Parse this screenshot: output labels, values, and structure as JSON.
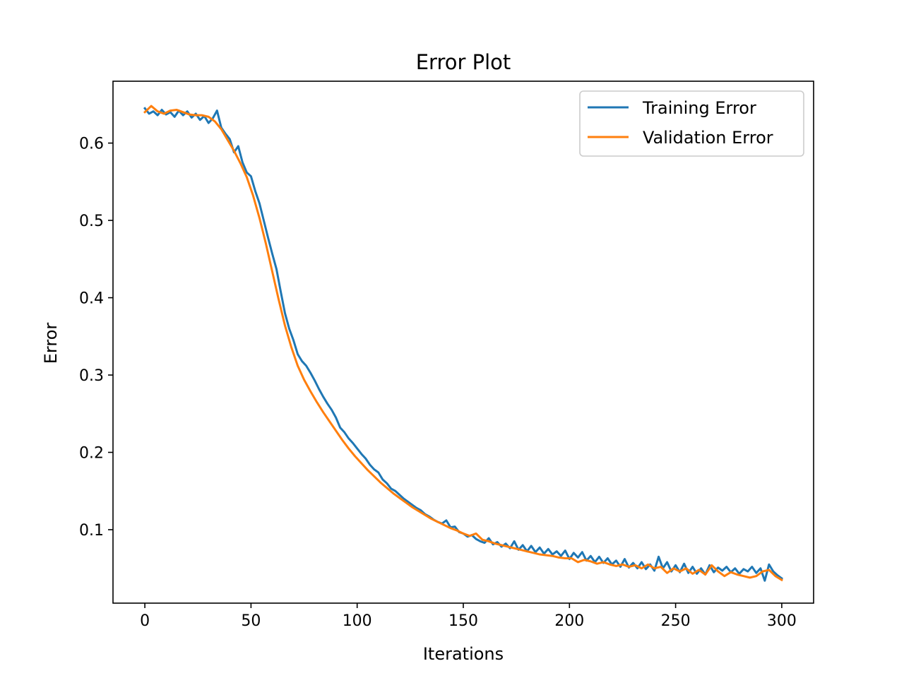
{
  "chart_data": {
    "type": "line",
    "title": "Error Plot",
    "xlabel": "Iterations",
    "ylabel": "Error",
    "xlim": [
      -15,
      315
    ],
    "ylim": [
      0.005,
      0.68
    ],
    "xticks": [
      0,
      50,
      100,
      150,
      200,
      250,
      300
    ],
    "yticks": [
      0.1,
      0.2,
      0.3,
      0.4,
      0.5,
      0.6
    ],
    "grid": false,
    "legend_position": "top-right",
    "series": [
      {
        "name": "Training Error",
        "color": "#1f77b4",
        "points": [
          [
            0,
            0.645
          ],
          [
            2,
            0.638
          ],
          [
            4,
            0.641
          ],
          [
            6,
            0.636
          ],
          [
            8,
            0.643
          ],
          [
            10,
            0.637
          ],
          [
            12,
            0.64
          ],
          [
            14,
            0.634
          ],
          [
            16,
            0.642
          ],
          [
            18,
            0.636
          ],
          [
            20,
            0.641
          ],
          [
            22,
            0.633
          ],
          [
            24,
            0.638
          ],
          [
            26,
            0.63
          ],
          [
            28,
            0.635
          ],
          [
            30,
            0.626
          ],
          [
            32,
            0.632
          ],
          [
            34,
            0.642
          ],
          [
            36,
            0.62
          ],
          [
            38,
            0.612
          ],
          [
            40,
            0.605
          ],
          [
            42,
            0.588
          ],
          [
            44,
            0.596
          ],
          [
            46,
            0.575
          ],
          [
            48,
            0.562
          ],
          [
            50,
            0.557
          ],
          [
            52,
            0.538
          ],
          [
            54,
            0.522
          ],
          [
            56,
            0.5
          ],
          [
            58,
            0.478
          ],
          [
            60,
            0.457
          ],
          [
            62,
            0.437
          ],
          [
            64,
            0.408
          ],
          [
            66,
            0.38
          ],
          [
            68,
            0.36
          ],
          [
            70,
            0.345
          ],
          [
            72,
            0.327
          ],
          [
            74,
            0.318
          ],
          [
            76,
            0.312
          ],
          [
            78,
            0.303
          ],
          [
            80,
            0.293
          ],
          [
            82,
            0.282
          ],
          [
            84,
            0.272
          ],
          [
            86,
            0.263
          ],
          [
            88,
            0.255
          ],
          [
            90,
            0.245
          ],
          [
            92,
            0.232
          ],
          [
            94,
            0.226
          ],
          [
            96,
            0.218
          ],
          [
            98,
            0.212
          ],
          [
            100,
            0.205
          ],
          [
            102,
            0.198
          ],
          [
            104,
            0.192
          ],
          [
            106,
            0.184
          ],
          [
            108,
            0.178
          ],
          [
            110,
            0.174
          ],
          [
            112,
            0.165
          ],
          [
            114,
            0.16
          ],
          [
            116,
            0.153
          ],
          [
            118,
            0.15
          ],
          [
            120,
            0.145
          ],
          [
            122,
            0.14
          ],
          [
            124,
            0.136
          ],
          [
            126,
            0.132
          ],
          [
            128,
            0.128
          ],
          [
            130,
            0.125
          ],
          [
            132,
            0.12
          ],
          [
            134,
            0.117
          ],
          [
            136,
            0.113
          ],
          [
            138,
            0.11
          ],
          [
            140,
            0.108
          ],
          [
            142,
            0.112
          ],
          [
            144,
            0.103
          ],
          [
            146,
            0.104
          ],
          [
            148,
            0.097
          ],
          [
            150,
            0.095
          ],
          [
            152,
            0.091
          ],
          [
            154,
            0.093
          ],
          [
            156,
            0.088
          ],
          [
            158,
            0.085
          ],
          [
            160,
            0.083
          ],
          [
            162,
            0.089
          ],
          [
            164,
            0.081
          ],
          [
            166,
            0.084
          ],
          [
            168,
            0.078
          ],
          [
            170,
            0.082
          ],
          [
            172,
            0.076
          ],
          [
            174,
            0.085
          ],
          [
            176,
            0.074
          ],
          [
            178,
            0.08
          ],
          [
            180,
            0.072
          ],
          [
            182,
            0.079
          ],
          [
            184,
            0.071
          ],
          [
            186,
            0.077
          ],
          [
            188,
            0.069
          ],
          [
            190,
            0.075
          ],
          [
            192,
            0.068
          ],
          [
            194,
            0.072
          ],
          [
            196,
            0.066
          ],
          [
            198,
            0.073
          ],
          [
            200,
            0.062
          ],
          [
            202,
            0.07
          ],
          [
            204,
            0.064
          ],
          [
            206,
            0.071
          ],
          [
            208,
            0.06
          ],
          [
            210,
            0.066
          ],
          [
            212,
            0.058
          ],
          [
            214,
            0.065
          ],
          [
            216,
            0.057
          ],
          [
            218,
            0.063
          ],
          [
            220,
            0.055
          ],
          [
            222,
            0.06
          ],
          [
            224,
            0.052
          ],
          [
            226,
            0.062
          ],
          [
            228,
            0.051
          ],
          [
            230,
            0.057
          ],
          [
            232,
            0.05
          ],
          [
            234,
            0.058
          ],
          [
            236,
            0.049
          ],
          [
            238,
            0.055
          ],
          [
            240,
            0.047
          ],
          [
            242,
            0.065
          ],
          [
            244,
            0.05
          ],
          [
            246,
            0.058
          ],
          [
            248,
            0.046
          ],
          [
            250,
            0.054
          ],
          [
            252,
            0.045
          ],
          [
            254,
            0.056
          ],
          [
            256,
            0.044
          ],
          [
            258,
            0.052
          ],
          [
            260,
            0.043
          ],
          [
            262,
            0.05
          ],
          [
            264,
            0.042
          ],
          [
            266,
            0.054
          ],
          [
            268,
            0.045
          ],
          [
            270,
            0.051
          ],
          [
            272,
            0.047
          ],
          [
            274,
            0.052
          ],
          [
            276,
            0.045
          ],
          [
            278,
            0.05
          ],
          [
            280,
            0.043
          ],
          [
            282,
            0.049
          ],
          [
            284,
            0.046
          ],
          [
            286,
            0.052
          ],
          [
            288,
            0.044
          ],
          [
            290,
            0.05
          ],
          [
            292,
            0.034
          ],
          [
            294,
            0.055
          ],
          [
            296,
            0.046
          ],
          [
            298,
            0.041
          ],
          [
            300,
            0.037
          ]
        ]
      },
      {
        "name": "Validation Error",
        "color": "#ff7f0e",
        "points": [
          [
            0,
            0.64
          ],
          [
            3,
            0.648
          ],
          [
            6,
            0.641
          ],
          [
            9,
            0.638
          ],
          [
            12,
            0.642
          ],
          [
            15,
            0.643
          ],
          [
            18,
            0.64
          ],
          [
            21,
            0.637
          ],
          [
            24,
            0.636
          ],
          [
            27,
            0.636
          ],
          [
            30,
            0.634
          ],
          [
            33,
            0.628
          ],
          [
            36,
            0.618
          ],
          [
            39,
            0.604
          ],
          [
            42,
            0.59
          ],
          [
            45,
            0.574
          ],
          [
            48,
            0.556
          ],
          [
            51,
            0.532
          ],
          [
            54,
            0.503
          ],
          [
            57,
            0.47
          ],
          [
            60,
            0.434
          ],
          [
            63,
            0.398
          ],
          [
            66,
            0.364
          ],
          [
            69,
            0.336
          ],
          [
            72,
            0.312
          ],
          [
            75,
            0.294
          ],
          [
            78,
            0.279
          ],
          [
            81,
            0.265
          ],
          [
            84,
            0.252
          ],
          [
            87,
            0.24
          ],
          [
            90,
            0.228
          ],
          [
            93,
            0.216
          ],
          [
            96,
            0.205
          ],
          [
            99,
            0.195
          ],
          [
            102,
            0.186
          ],
          [
            105,
            0.177
          ],
          [
            108,
            0.169
          ],
          [
            111,
            0.161
          ],
          [
            114,
            0.154
          ],
          [
            117,
            0.147
          ],
          [
            120,
            0.141
          ],
          [
            123,
            0.135
          ],
          [
            126,
            0.129
          ],
          [
            129,
            0.124
          ],
          [
            132,
            0.119
          ],
          [
            135,
            0.114
          ],
          [
            138,
            0.11
          ],
          [
            141,
            0.106
          ],
          [
            144,
            0.102
          ],
          [
            147,
            0.099
          ],
          [
            150,
            0.095
          ],
          [
            153,
            0.092
          ],
          [
            156,
            0.095
          ],
          [
            159,
            0.087
          ],
          [
            162,
            0.085
          ],
          [
            165,
            0.082
          ],
          [
            168,
            0.08
          ],
          [
            171,
            0.078
          ],
          [
            174,
            0.076
          ],
          [
            177,
            0.074
          ],
          [
            180,
            0.072
          ],
          [
            183,
            0.07
          ],
          [
            186,
            0.068
          ],
          [
            189,
            0.067
          ],
          [
            192,
            0.066
          ],
          [
            195,
            0.064
          ],
          [
            198,
            0.063
          ],
          [
            201,
            0.063
          ],
          [
            204,
            0.058
          ],
          [
            207,
            0.061
          ],
          [
            210,
            0.059
          ],
          [
            213,
            0.056
          ],
          [
            216,
            0.058
          ],
          [
            219,
            0.055
          ],
          [
            222,
            0.053
          ],
          [
            225,
            0.055
          ],
          [
            228,
            0.052
          ],
          [
            231,
            0.054
          ],
          [
            234,
            0.05
          ],
          [
            237,
            0.055
          ],
          [
            240,
            0.05
          ],
          [
            243,
            0.052
          ],
          [
            246,
            0.044
          ],
          [
            249,
            0.05
          ],
          [
            252,
            0.046
          ],
          [
            255,
            0.05
          ],
          [
            258,
            0.043
          ],
          [
            261,
            0.048
          ],
          [
            264,
            0.042
          ],
          [
            267,
            0.054
          ],
          [
            270,
            0.046
          ],
          [
            273,
            0.04
          ],
          [
            276,
            0.045
          ],
          [
            279,
            0.042
          ],
          [
            282,
            0.04
          ],
          [
            285,
            0.038
          ],
          [
            288,
            0.04
          ],
          [
            291,
            0.046
          ],
          [
            294,
            0.048
          ],
          [
            297,
            0.04
          ],
          [
            300,
            0.035
          ]
        ]
      }
    ]
  }
}
